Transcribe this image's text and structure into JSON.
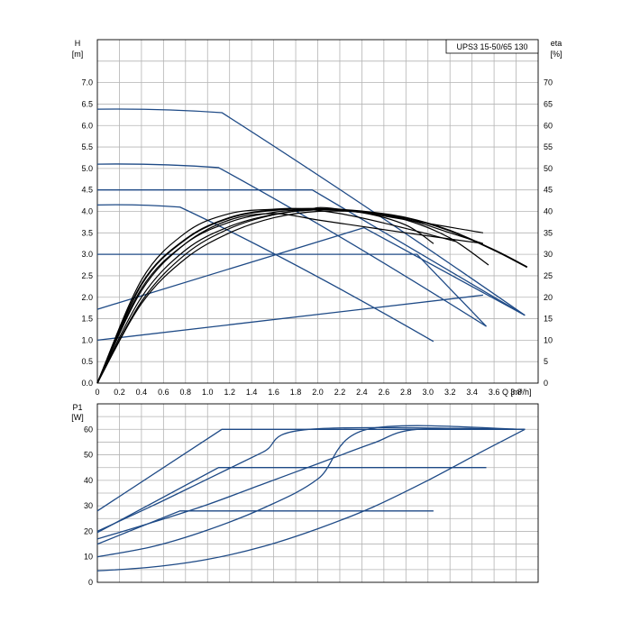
{
  "chart_data": [
    {
      "panel": "head-efficiency",
      "type": "line",
      "title": "UPS3 15-50/65  130",
      "xlabel": "Q [m³/h]",
      "ylabel": "H [m]",
      "ylabel_parts": [
        "H",
        "[m]"
      ],
      "y2label": "eta [%]",
      "y2label_parts": [
        "eta",
        "[%]"
      ],
      "xlim": [
        0,
        4.0
      ],
      "ylim": [
        0,
        8.0
      ],
      "y2lim": [
        0,
        80
      ],
      "xticks": [
        "0",
        "0.2",
        "0.4",
        "0.6",
        "0.8",
        "1.0",
        "1.2",
        "1.4",
        "1.6",
        "1.8",
        "2.0",
        "2.2",
        "2.4",
        "2.6",
        "2.8",
        "3.0",
        "3.2",
        "3.4",
        "3.6",
        "3.8"
      ],
      "yticks": [
        "0.0",
        "0.5",
        "1.0",
        "1.5",
        "2.0",
        "2.5",
        "3.0",
        "3.5",
        "4.0",
        "4.5",
        "5.0",
        "5.5",
        "6.0",
        "6.5",
        "7.0"
      ],
      "y2ticks": [
        "0",
        "5",
        "10",
        "15",
        "20",
        "25",
        "30",
        "35",
        "40",
        "45",
        "50",
        "55",
        "60",
        "65",
        "70"
      ],
      "grid": true,
      "head_curves": [
        {
          "kind": "constant-curve",
          "x": [
            0,
            1.13,
            3.88
          ],
          "y": [
            6.38,
            6.3,
            1.58
          ]
        },
        {
          "kind": "constant-curve",
          "x": [
            0,
            1.1,
            3.53
          ],
          "y": [
            5.1,
            5.02,
            1.32
          ]
        },
        {
          "kind": "constant-curve",
          "x": [
            0,
            0.75,
            3.05
          ],
          "y": [
            4.15,
            4.1,
            0.97
          ]
        },
        {
          "kind": "constant-pressure",
          "x": [
            0,
            1.95,
            3.88
          ],
          "y": [
            4.5,
            4.5,
            1.58
          ]
        },
        {
          "kind": "constant-pressure",
          "x": [
            0,
            2.9,
            3.53
          ],
          "y": [
            3.0,
            3.0,
            1.32
          ]
        },
        {
          "kind": "proportional-pressure",
          "x": [
            0,
            2.42,
            3.88
          ],
          "y": [
            1.72,
            3.62,
            1.58
          ]
        },
        {
          "kind": "proportional-pressure",
          "x": [
            0,
            3.5
          ],
          "y": [
            1.0,
            2.05
          ]
        }
      ],
      "efficiency_curves": [
        {
          "x": [
            0,
            0.4,
            0.8,
            1.2,
            1.6,
            2.0,
            2.4,
            2.8,
            3.2,
            3.6,
            3.9
          ],
          "y": [
            0,
            23,
            33.5,
            38.5,
            40.3,
            40.6,
            40.0,
            38.5,
            35.5,
            31.0,
            27.0
          ],
          "emphasis": true
        },
        {
          "x": [
            0,
            0.4,
            0.8,
            1.2,
            1.6,
            2.0,
            2.4,
            2.8,
            3.2,
            3.55
          ],
          "y": [
            0,
            20,
            31,
            36.5,
            39.3,
            40.4,
            40.0,
            38.0,
            33.8,
            27.5
          ]
        },
        {
          "x": [
            0,
            0.4,
            0.8,
            1.2,
            1.6,
            2.0,
            2.4,
            2.8,
            3.05
          ],
          "y": [
            0,
            19,
            30,
            36,
            39.2,
            40.4,
            39.7,
            36.8,
            32.5
          ]
        },
        {
          "x": [
            0,
            0.4,
            0.8,
            1.2,
            1.6,
            1.9,
            2.2,
            3.5
          ],
          "y": [
            0,
            22,
            32.5,
            37.5,
            39.8,
            40.4,
            40.5,
            35.0
          ]
        },
        {
          "x": [
            0,
            0.4,
            0.8,
            1.2,
            1.6,
            2.0,
            2.4,
            2.8,
            3.5
          ],
          "y": [
            0,
            21.5,
            32.5,
            38.0,
            39.5,
            38.0,
            36.5,
            35.0,
            32.5
          ]
        },
        {
          "x": [
            0,
            0.4,
            0.8,
            1.2,
            1.6,
            1.85,
            2.2,
            2.6,
            3.0,
            3.25
          ],
          "y": [
            0,
            24,
            35,
            39.5,
            40.5,
            40.6,
            39.5,
            37.3,
            34.7,
            33.0
          ]
        },
        {
          "x": [
            0,
            0.4,
            0.8,
            1.2,
            1.6,
            2.0,
            2.4,
            2.8,
            3.2,
            3.5
          ],
          "y": [
            0,
            18.5,
            29,
            35,
            38.5,
            40.0,
            39.8,
            38.2,
            35.0,
            32.5
          ]
        }
      ]
    },
    {
      "panel": "power",
      "type": "line",
      "xlabel": "",
      "ylabel": "P1 [W]",
      "ylabel_parts": [
        "P1",
        "[W]"
      ],
      "xlim": [
        0,
        4.0
      ],
      "ylim": [
        0,
        70
      ],
      "yticks": [
        "0",
        "10",
        "20",
        "30",
        "40",
        "50",
        "60"
      ],
      "grid": true,
      "power_curves": [
        {
          "x": [
            0,
            1.13,
            3.88
          ],
          "y": [
            28,
            60,
            60
          ]
        },
        {
          "x": [
            0,
            1.1,
            3.53
          ],
          "y": [
            19.5,
            45,
            45
          ]
        },
        {
          "x": [
            0,
            0.75,
            3.05
          ],
          "y": [
            15,
            28,
            28
          ]
        },
        {
          "x": [
            0,
            0.5,
            1.0,
            1.5,
            1.92,
            3.88
          ],
          "y": [
            20,
            30,
            40.5,
            51,
            60,
            60
          ]
        },
        {
          "x": [
            0,
            0.5,
            1.0,
            1.5,
            2.0,
            2.5,
            2.9,
            3.88
          ],
          "y": [
            17,
            23.5,
            30.5,
            38.5,
            46.5,
            54.5,
            60,
            60
          ]
        },
        {
          "x": [
            0,
            0.5,
            1.0,
            1.5,
            2.0,
            2.45,
            3.88
          ],
          "y": [
            10,
            14,
            20.5,
            29,
            40.5,
            60,
            60
          ]
        },
        {
          "x": [
            0,
            0.5,
            1.0,
            1.5,
            2.0,
            2.5,
            3.0,
            3.5,
            3.88
          ],
          "y": [
            4.5,
            6,
            9,
            14,
            21,
            29.5,
            40,
            51.5,
            60
          ]
        }
      ]
    }
  ]
}
